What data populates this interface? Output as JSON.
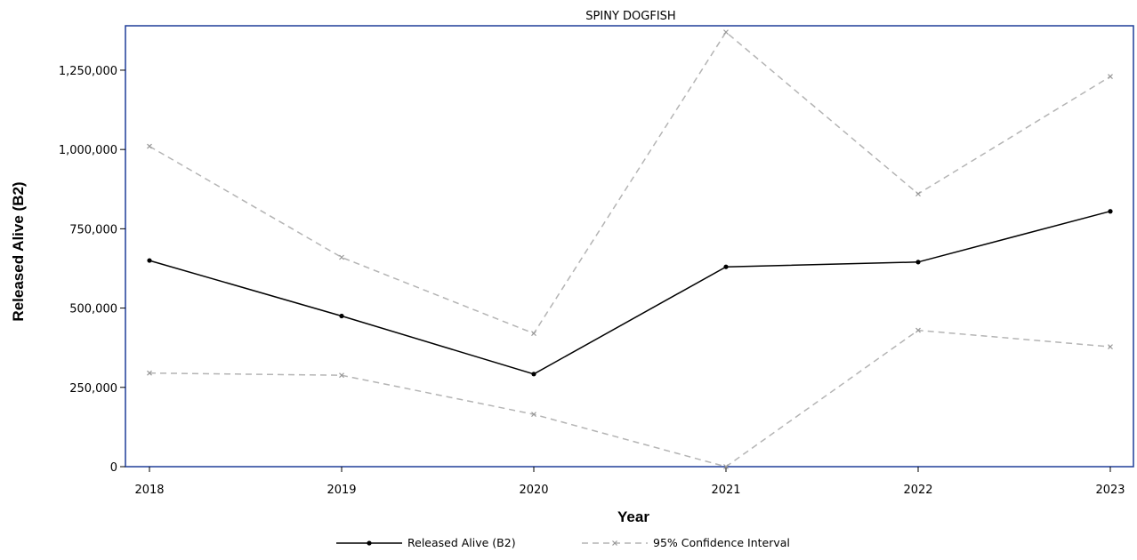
{
  "chart_data": {
    "type": "line",
    "title": "SPINY DOGFISH",
    "xlabel": "Year",
    "ylabel": "Released Alive (B2)",
    "x": [
      2018,
      2019,
      2020,
      2021,
      2022,
      2023
    ],
    "x_tick_labels": [
      "2018",
      "2019",
      "2020",
      "2021",
      "2022",
      "2023"
    ],
    "ylim": [
      0,
      1390000
    ],
    "y_ticks": [
      0,
      250000,
      500000,
      750000,
      1000000,
      1250000
    ],
    "y_tick_labels": [
      "0",
      "250,000",
      "500,000",
      "750,000",
      "1,000,000",
      "1,250,000"
    ],
    "grid": false,
    "legend_position": "bottom",
    "series": [
      {
        "name": "Released Alive (B2)",
        "values": [
          650000,
          475000,
          292000,
          630000,
          645000,
          805000
        ],
        "color": "#000000",
        "style": "solid",
        "marker": "dot"
      },
      {
        "name": "95% Confidence Interval",
        "role": "upper",
        "values": [
          1010000,
          660000,
          420000,
          1370000,
          860000,
          1230000
        ],
        "color": "#b4b4b4",
        "style": "dashed",
        "marker": "x"
      },
      {
        "name": "95% Confidence Interval",
        "role": "lower",
        "values": [
          295000,
          288000,
          165000,
          0,
          430000,
          378000
        ],
        "color": "#b4b4b4",
        "style": "dashed",
        "marker": "x"
      }
    ],
    "legend": [
      {
        "label": "Released Alive (B2)",
        "color": "#000000",
        "style": "solid"
      },
      {
        "label": "95% Confidence Interval",
        "color": "#b4b4b4",
        "style": "dashed"
      }
    ],
    "frame_color": "#1f3d99"
  }
}
